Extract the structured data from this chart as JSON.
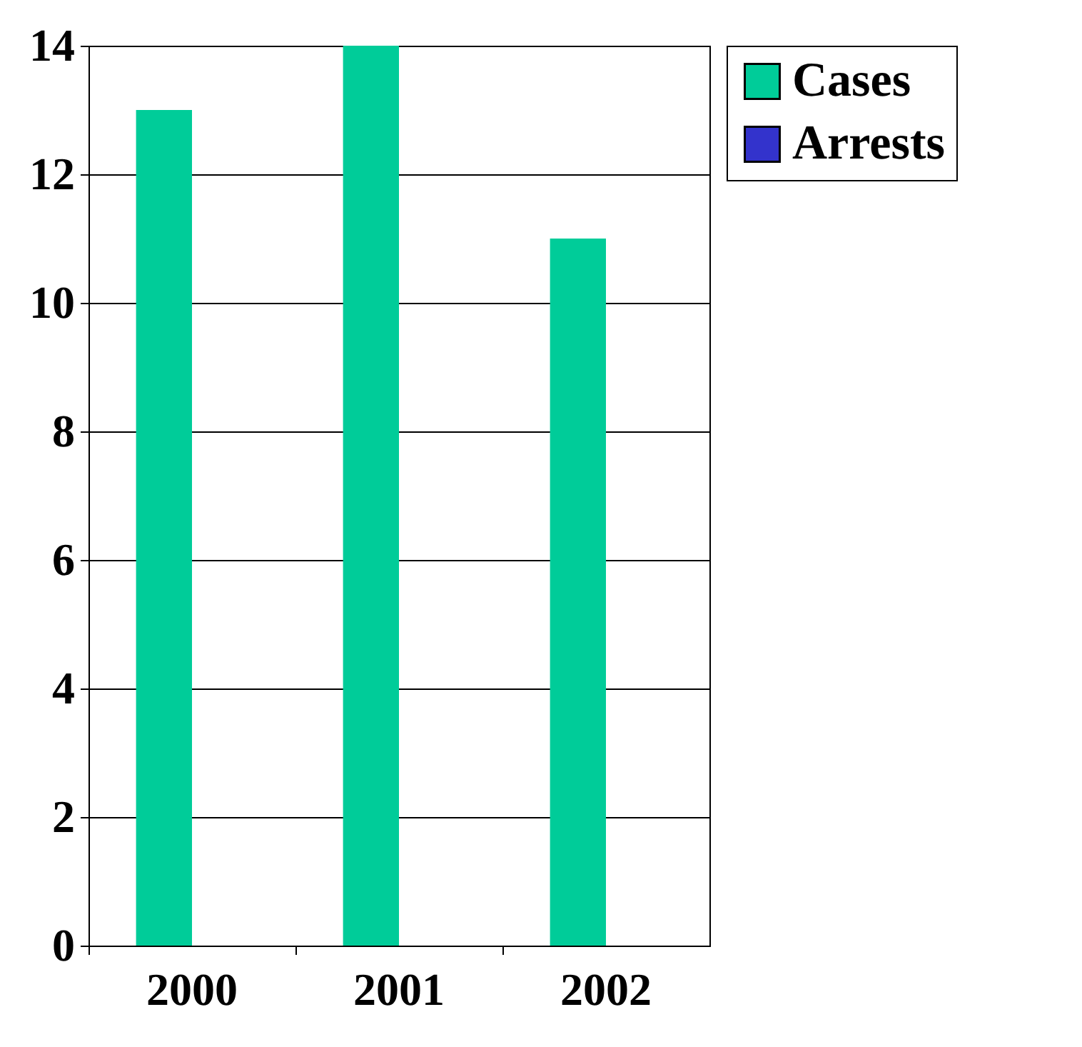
{
  "chart_data": {
    "type": "bar",
    "categories": [
      "2000",
      "2001",
      "2002",
      null
    ],
    "series": [
      {
        "name": "Cases",
        "color": "#00cc99",
        "values": [
          13,
          14,
          11,
          null
        ]
      },
      {
        "name": "Arrests",
        "color": "#3333cc",
        "values": [
          0,
          0,
          0,
          null
        ]
      }
    ],
    "ylim": [
      0,
      14
    ],
    "yticks": [
      0,
      2,
      4,
      6,
      8,
      10,
      12,
      14
    ],
    "grid": "y",
    "legend": "right"
  }
}
